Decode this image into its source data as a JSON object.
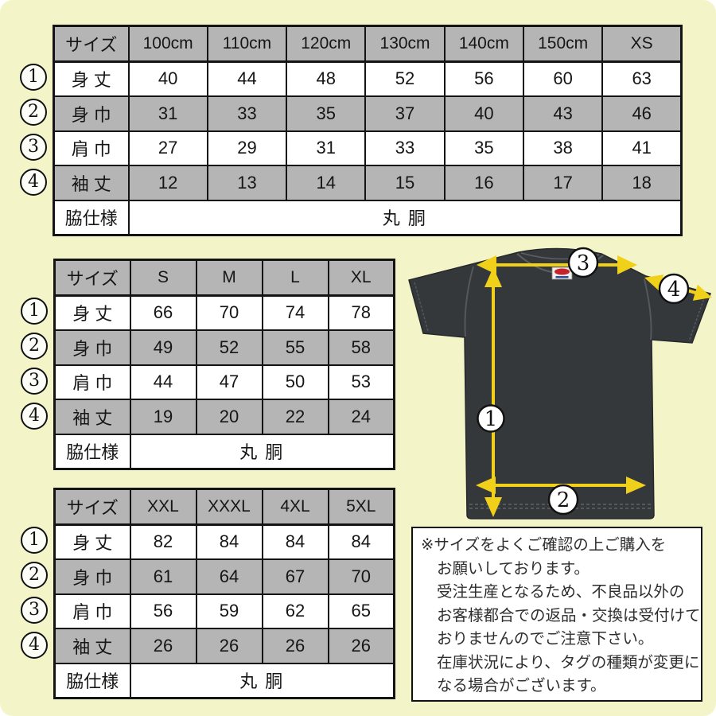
{
  "page": {
    "background_color": "#f3f5c9",
    "table_header_gray": "#b5b5b5",
    "table_border_color": "#141414",
    "arrow_yellow": "#f1d01a",
    "shirt_body_color": "#34383b",
    "note_background": "#ffffff"
  },
  "tables": [
    {
      "name": "kids-sizes",
      "header": [
        "サイズ",
        "100cm",
        "110cm",
        "120cm",
        "130cm",
        "140cm",
        "150cm",
        "XS"
      ],
      "rows": [
        {
          "marker": "1",
          "label": "身 丈",
          "values": [
            "40",
            "44",
            "48",
            "52",
            "56",
            "60",
            "63"
          ]
        },
        {
          "marker": "2",
          "label": "身 巾",
          "values": [
            "31",
            "33",
            "35",
            "37",
            "40",
            "43",
            "46"
          ]
        },
        {
          "marker": "3",
          "label": "肩 巾",
          "values": [
            "27",
            "29",
            "31",
            "33",
            "35",
            "38",
            "41"
          ]
        },
        {
          "marker": "4",
          "label": "袖 丈",
          "values": [
            "12",
            "13",
            "14",
            "15",
            "16",
            "17",
            "18"
          ]
        }
      ],
      "footer": {
        "label": "脇仕様",
        "value": "丸 胴"
      }
    },
    {
      "name": "adult-sizes",
      "header": [
        "サイズ",
        "S",
        "M",
        "L",
        "XL"
      ],
      "rows": [
        {
          "marker": "1",
          "label": "身 丈",
          "values": [
            "66",
            "70",
            "74",
            "78"
          ]
        },
        {
          "marker": "2",
          "label": "身 巾",
          "values": [
            "49",
            "52",
            "55",
            "58"
          ]
        },
        {
          "marker": "3",
          "label": "肩 巾",
          "values": [
            "44",
            "47",
            "50",
            "53"
          ]
        },
        {
          "marker": "4",
          "label": "袖 丈",
          "values": [
            "19",
            "20",
            "22",
            "24"
          ]
        }
      ],
      "footer": {
        "label": "脇仕様",
        "value": "丸 胴"
      }
    },
    {
      "name": "big-sizes",
      "header": [
        "サイズ",
        "XXL",
        "XXXL",
        "4XL",
        "5XL"
      ],
      "rows": [
        {
          "marker": "1",
          "label": "身 丈",
          "values": [
            "82",
            "84",
            "84",
            "84"
          ]
        },
        {
          "marker": "2",
          "label": "身 巾",
          "values": [
            "61",
            "64",
            "67",
            "70"
          ]
        },
        {
          "marker": "3",
          "label": "肩 巾",
          "values": [
            "56",
            "59",
            "62",
            "65"
          ]
        },
        {
          "marker": "4",
          "label": "袖 丈",
          "values": [
            "26",
            "26",
            "26",
            "26"
          ]
        }
      ],
      "footer": {
        "label": "脇仕様",
        "value": "丸 胴"
      }
    }
  ],
  "shirt": {
    "markers": {
      "m1": "1",
      "m2": "2",
      "m3": "3",
      "m4": "4"
    }
  },
  "note": {
    "lines": [
      "※サイズをよくご確認の上ご購入を",
      "お願いしております。",
      "受注生産となるため、不良品以外の",
      "お客様都合での返品・交換は受付けて",
      "おりませんのでご注意下さい。",
      "在庫状況により、タグの種類が変更に",
      "なる場合がございます。"
    ]
  }
}
